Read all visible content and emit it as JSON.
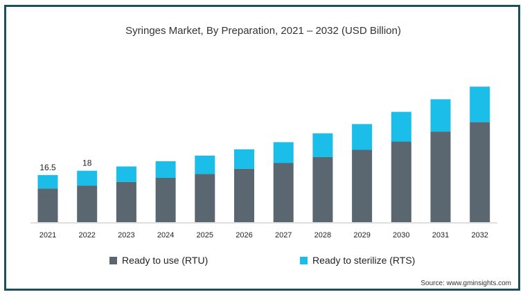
{
  "title": "Syringes Market, By Preparation, 2021 – 2032 (USD Billion)",
  "source": "Source: www.gminsights.com",
  "colors": {
    "rtu": "#5a6670",
    "rts": "#1bbde9",
    "frame": "#1c4f5c"
  },
  "chart_data": {
    "type": "bar",
    "stacked": true,
    "title": "Syringes Market, By Preparation, 2021 – 2032 (USD Billion)",
    "categories": [
      "2021",
      "2022",
      "2023",
      "2024",
      "2025",
      "2026",
      "2027",
      "2028",
      "2029",
      "2030",
      "2031",
      "2032"
    ],
    "series": [
      {
        "name": "Ready to use (RTU)",
        "values": [
          11.8,
          12.8,
          14.1,
          15.5,
          16.9,
          18.7,
          20.7,
          22.8,
          25.3,
          28.2,
          31.7,
          35.0
        ]
      },
      {
        "name": "Ready to sterilize (RTS)",
        "values": [
          4.7,
          5.2,
          5.4,
          5.8,
          6.4,
          6.8,
          7.3,
          8.3,
          9.0,
          10.4,
          11.3,
          12.4
        ]
      }
    ],
    "data_labels": {
      "2021": "16.5",
      "2022": "18"
    },
    "ylim": [
      0,
      50
    ],
    "grid": false,
    "legend_position": "bottom"
  }
}
